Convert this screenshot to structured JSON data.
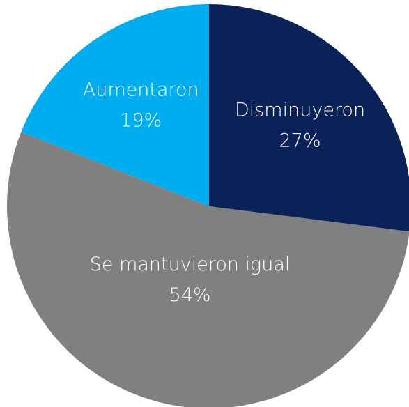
{
  "chart_data": {
    "type": "pie",
    "categories": [
      "Disminuyeron",
      "Se mantuvieron igual",
      "Aumentaron"
    ],
    "values": [
      27,
      54,
      19
    ],
    "value_labels": [
      "27%",
      "54%",
      "19%"
    ],
    "colors": [
      "#0b2259",
      "#808080",
      "#00aeef"
    ]
  }
}
